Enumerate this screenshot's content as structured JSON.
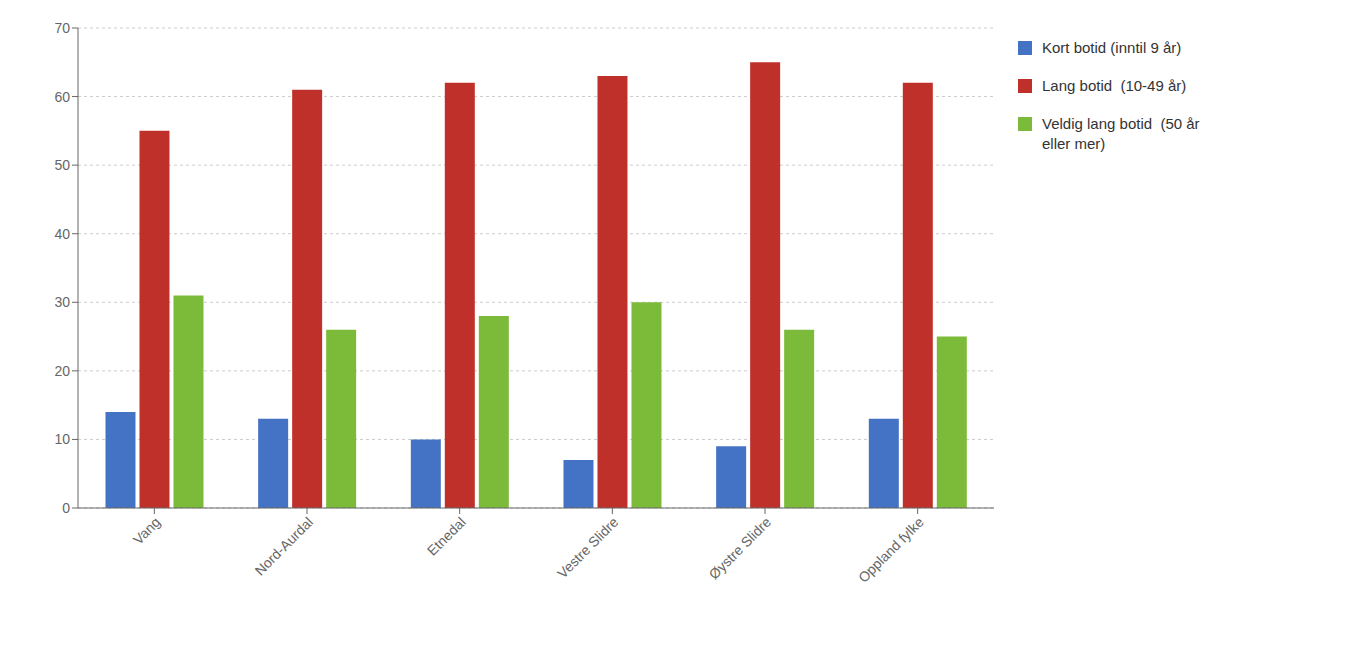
{
  "chart_data": {
    "type": "bar",
    "categories": [
      "Vang",
      "Nord-Aurdal",
      "Etnedal",
      "Vestre Slidre",
      "Øystre Slidre",
      "Oppland fylke"
    ],
    "series": [
      {
        "name": "Kort botid (inntil 9 år)",
        "color": "#4472C4",
        "values": [
          14,
          13,
          10,
          7,
          9,
          13
        ]
      },
      {
        "name": "Lang botid  (10-49 år)",
        "color": "#C0302A",
        "values": [
          55,
          61,
          62,
          63,
          65,
          62
        ]
      },
      {
        "name": "Veldig lang botid  (50 år\neller mer)",
        "color": "#7CBB3A",
        "values": [
          31,
          26,
          28,
          30,
          26,
          25
        ]
      }
    ],
    "ylim": [
      0,
      70
    ],
    "yticks": [
      0,
      10,
      20,
      30,
      40,
      50,
      60,
      70
    ],
    "grid": true,
    "legend": "right"
  }
}
